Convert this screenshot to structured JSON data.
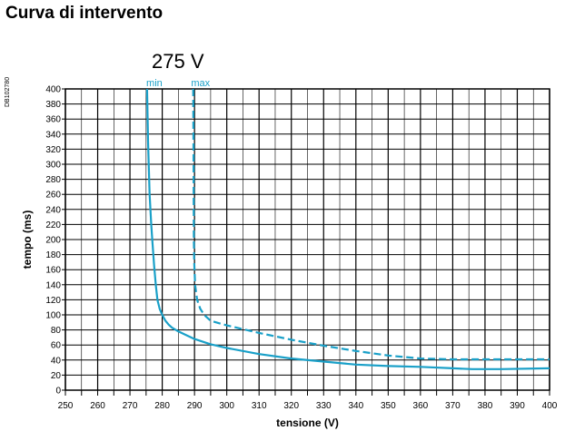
{
  "page": {
    "title": "Curva di intervento",
    "ref_code": "DB102780",
    "threshold_label": "275 V"
  },
  "colors": {
    "curve": "#1aa0c8",
    "grid": "#000000",
    "background": "#ffffff"
  },
  "chart_data": {
    "type": "line",
    "title": "",
    "xlabel": "tensione (V)",
    "ylabel": "tempo (ms)",
    "xlim": [
      250,
      400
    ],
    "ylim": [
      0,
      400
    ],
    "x_ticks": [
      250,
      260,
      270,
      280,
      290,
      300,
      310,
      320,
      330,
      340,
      350,
      360,
      370,
      380,
      390,
      400
    ],
    "y_ticks": [
      0,
      20,
      40,
      60,
      80,
      100,
      120,
      140,
      160,
      180,
      200,
      220,
      240,
      260,
      280,
      300,
      320,
      340,
      360,
      380,
      400
    ],
    "grid": true,
    "series": [
      {
        "name": "min",
        "style": "solid",
        "points": [
          [
            275.3,
            400
          ],
          [
            275.6,
            330
          ],
          [
            276.1,
            260
          ],
          [
            276.6,
            220
          ],
          [
            277.0,
            195
          ],
          [
            277.5,
            165
          ],
          [
            278.0,
            140
          ],
          [
            278.5,
            120
          ],
          [
            279.2,
            108
          ],
          [
            280,
            100
          ],
          [
            281,
            92
          ],
          [
            282,
            87
          ],
          [
            283,
            83
          ],
          [
            285,
            78
          ],
          [
            287,
            74
          ],
          [
            290,
            68
          ],
          [
            295,
            61
          ],
          [
            300,
            56
          ],
          [
            310,
            48
          ],
          [
            320,
            42
          ],
          [
            330,
            38
          ],
          [
            340,
            34
          ],
          [
            350,
            32
          ],
          [
            360,
            31
          ],
          [
            370,
            29
          ],
          [
            376,
            28
          ],
          [
            385,
            28
          ],
          [
            400,
            29
          ]
        ]
      },
      {
        "name": "max",
        "style": "dashed",
        "points": [
          [
            289.6,
            400
          ],
          [
            289.7,
            300
          ],
          [
            289.8,
            200
          ],
          [
            289.9,
            170
          ],
          [
            290.2,
            140
          ],
          [
            290.8,
            120
          ],
          [
            291.8,
            108
          ],
          [
            293,
            100
          ],
          [
            295,
            92
          ],
          [
            300,
            86
          ],
          [
            310,
            76
          ],
          [
            320,
            67
          ],
          [
            330,
            59
          ],
          [
            340,
            52
          ],
          [
            350,
            46
          ],
          [
            360,
            42
          ],
          [
            370,
            41
          ],
          [
            380,
            41
          ],
          [
            390,
            41
          ],
          [
            400,
            41
          ]
        ]
      }
    ]
  }
}
